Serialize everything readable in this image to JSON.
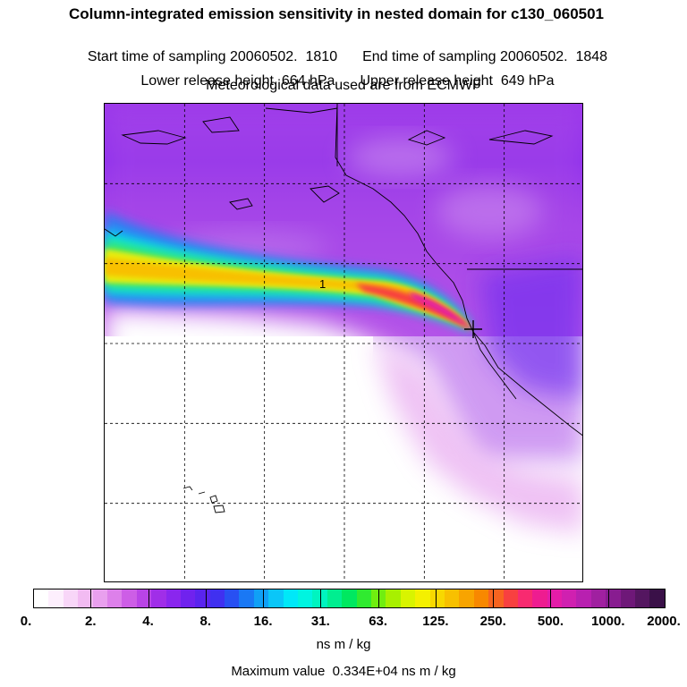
{
  "header": {
    "title": "Column-integrated emission sensitivity in nested domain for c130_060501",
    "start_time": "Start time of sampling 20060502.  1810",
    "end_time": "End time of sampling 20060502.  1848",
    "lower_height": "Lower release height  664 hPa",
    "upper_height": "Upper release height  649 hPa",
    "met_source": "Meteorological data used are from ECMWF"
  },
  "map": {
    "plume_label": "1",
    "grid": {
      "cols": 6,
      "rows": 6
    }
  },
  "colorbar": {
    "tick_labels": [
      "0.",
      "2.",
      "4.",
      "8.",
      "16.",
      "31.",
      "63.",
      "125.",
      "250.",
      "500.",
      "1000.",
      "2000."
    ],
    "colors": [
      "#ffffff",
      "#fdeffd",
      "#f8d6f8",
      "#f2bbf2",
      "#e9a0ee",
      "#dd80ea",
      "#cd5ee6",
      "#b944e6",
      "#a02ee8",
      "#8a26ee",
      "#7022ee",
      "#5a24ee",
      "#4030f0",
      "#2850f2",
      "#1a78f4",
      "#10a0f6",
      "#0ac6f8",
      "#00e8f8",
      "#00f4e0",
      "#00f4c0",
      "#00ee90",
      "#00e860",
      "#30ea30",
      "#70ee10",
      "#a8f000",
      "#d8f400",
      "#f4f000",
      "#f8d800",
      "#f8c000",
      "#f8a400",
      "#f88800",
      "#f86420",
      "#f84040",
      "#f82a70",
      "#ee1c90",
      "#e41ca8",
      "#d020b0",
      "#b820b0",
      "#a020a0",
      "#881c90",
      "#6e1878",
      "#541660",
      "#3a1048"
    ]
  },
  "footer": {
    "units": "ns m / kg",
    "max_value": "Maximum value  0.334E+04 ns m / kg"
  }
}
